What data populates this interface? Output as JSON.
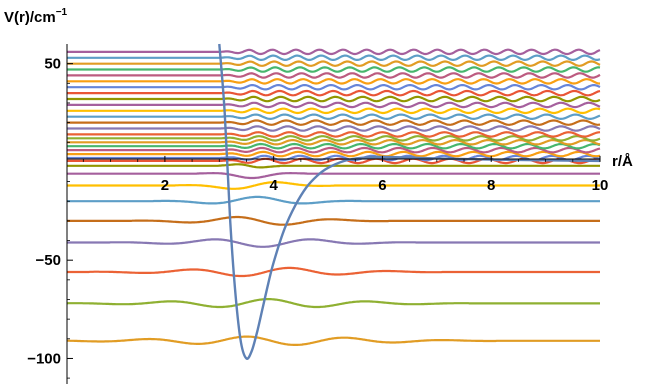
{
  "chart_data": {
    "type": "line",
    "title": "",
    "xlabel": "r/Å",
    "ylabel_main": "V(r)/cm",
    "ylabel_sup": "−1",
    "xlim": [
      0.2,
      10
    ],
    "ylim": [
      -113,
      60
    ],
    "x_ticks": [
      2,
      4,
      6,
      8,
      10
    ],
    "x_tick_labels": [
      "2",
      "4",
      "6",
      "8",
      "10"
    ],
    "y_ticks": [
      50,
      -50,
      -100
    ],
    "y_tick_labels": [
      "50",
      "−50",
      "−100"
    ],
    "grid": false,
    "legend": "none",
    "potential": {
      "name": "V(r)",
      "color": "#5e81b5",
      "x": [
        3.0,
        3.1,
        3.2,
        3.3,
        3.4,
        3.5,
        3.6,
        3.7,
        3.8,
        3.9,
        4.0,
        4.2,
        4.4,
        4.6,
        4.8,
        5.0,
        5.3,
        5.6,
        6.0,
        6.5,
        7.0,
        8.0,
        9.0,
        10.0
      ],
      "y": [
        60,
        25,
        -30,
        -68,
        -92,
        -100,
        -96,
        -86,
        -74,
        -62,
        -51,
        -34,
        -22,
        -13,
        -7,
        -3,
        0.5,
        2,
        2.5,
        2.2,
        1.8,
        1.2,
        0.8,
        0.5
      ]
    },
    "series": [
      {
        "level": -91,
        "color": "#e19c24",
        "kind": "bound"
      },
      {
        "level": -72,
        "color": "#8fb032",
        "kind": "bound"
      },
      {
        "level": -56,
        "color": "#eb6235",
        "kind": "bound"
      },
      {
        "level": -41,
        "color": "#8778b3",
        "kind": "bound"
      },
      {
        "level": -30,
        "color": "#c56e1a",
        "kind": "bound"
      },
      {
        "level": -20,
        "color": "#5d9ec7",
        "kind": "bound"
      },
      {
        "level": -12,
        "color": "#ffbf00",
        "kind": "bound"
      },
      {
        "level": -6,
        "color": "#a5609d",
        "kind": "bound"
      },
      {
        "level": -2,
        "color": "#929600",
        "kind": "bound"
      },
      {
        "level": 0.5,
        "color": "#e95536",
        "kind": "continuum"
      },
      {
        "level": 2,
        "color": "#6685d9",
        "kind": "continuum"
      },
      {
        "level": 4,
        "color": "#f89f13",
        "kind": "continuum"
      },
      {
        "level": 6,
        "color": "#bc5b80",
        "kind": "continuum"
      },
      {
        "level": 8,
        "color": "#47b66d",
        "kind": "continuum"
      },
      {
        "level": 10,
        "color": "#e19c24",
        "kind": "continuum"
      },
      {
        "level": 12,
        "color": "#8fb032",
        "kind": "continuum"
      },
      {
        "level": 14,
        "color": "#eb6235",
        "kind": "continuum"
      },
      {
        "level": 17,
        "color": "#8778b3",
        "kind": "continuum"
      },
      {
        "level": 20,
        "color": "#c56e1a",
        "kind": "continuum"
      },
      {
        "level": 23,
        "color": "#5d9ec7",
        "kind": "continuum"
      },
      {
        "level": 26,
        "color": "#ffbf00",
        "kind": "continuum"
      },
      {
        "level": 29,
        "color": "#a5609d",
        "kind": "continuum"
      },
      {
        "level": 32,
        "color": "#929600",
        "kind": "continuum"
      },
      {
        "level": 35,
        "color": "#e95536",
        "kind": "continuum"
      },
      {
        "level": 38,
        "color": "#6685d9",
        "kind": "continuum"
      },
      {
        "level": 41,
        "color": "#f89f13",
        "kind": "continuum"
      },
      {
        "level": 44,
        "color": "#bc5b80",
        "kind": "continuum"
      },
      {
        "level": 47,
        "color": "#47b66d",
        "kind": "continuum"
      },
      {
        "level": 50,
        "color": "#e19c24",
        "kind": "continuum"
      },
      {
        "level": 53,
        "color": "#5d9ec7",
        "kind": "continuum"
      },
      {
        "level": 56,
        "color": "#a5609d",
        "kind": "continuum"
      }
    ]
  }
}
